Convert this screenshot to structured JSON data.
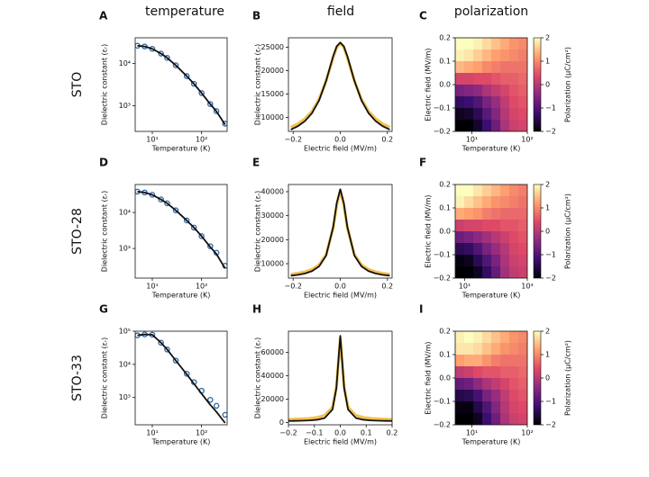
{
  "columns": [
    "temperature",
    "field",
    "polarization"
  ],
  "rows": [
    "STO",
    "STO-28",
    "STO-33"
  ],
  "chart_data": [
    {
      "panel": "A",
      "type": "line",
      "xlabel": "Temperature (K)",
      "ylabel": "Dielectric constant (εᵣ)",
      "xlog": true,
      "ylog": true,
      "xlim": [
        4.5,
        330
      ],
      "ylim": [
        250,
        40000
      ],
      "xticks": [
        {
          "value": 10,
          "label": "10¹"
        },
        {
          "value": 100,
          "label": "10²"
        }
      ],
      "yticks": [
        {
          "value": 1000,
          "label": "10³"
        },
        {
          "value": 10000,
          "label": "10⁴"
        }
      ],
      "x": [
        5,
        7,
        10,
        15,
        20,
        30,
        50,
        70,
        100,
        150,
        200,
        300
      ],
      "series": [
        {
          "color": "#3b6ea5",
          "marker": true,
          "values": [
            26000,
            25000,
            22000,
            17000,
            13500,
            9000,
            5000,
            3300,
            2000,
            1100,
            750,
            380
          ]
        },
        {
          "color": "#111111",
          "marker": false,
          "values": [
            26000,
            25000,
            22000,
            17000,
            13500,
            9000,
            5000,
            3300,
            2000,
            1100,
            740,
            360
          ]
        }
      ]
    },
    {
      "panel": "B",
      "type": "line",
      "xlabel": "Electric field (MV/m)",
      "ylabel": "Dielectric constant (εᵣ)",
      "xlim": [
        -0.22,
        0.22
      ],
      "ylim": [
        7000,
        27000
      ],
      "xticks": [
        {
          "value": -0.2,
          "label": "−0.2"
        },
        {
          "value": 0,
          "label": "0.0"
        },
        0.2
      ],
      "yticks": [
        10000,
        15000,
        20000,
        25000
      ],
      "x": [
        -0.21,
        -0.18,
        -0.15,
        -0.12,
        -0.09,
        -0.06,
        -0.03,
        -0.015,
        0,
        0.015,
        0.03,
        0.06,
        0.09,
        0.12,
        0.15,
        0.18,
        0.21
      ],
      "series": [
        {
          "color": "#f2c14e",
          "marker": false,
          "values": [
            7900,
            8600,
            9700,
            11300,
            13900,
            17800,
            22800,
            25000,
            25800,
            25000,
            22800,
            17800,
            13900,
            11300,
            9700,
            8600,
            7900
          ]
        },
        {
          "color": "#111111",
          "marker": false,
          "values": [
            7376,
            8107,
            9200,
            10899,
            13607,
            17805,
            23103,
            25192,
            26000,
            25192,
            23103,
            17805,
            13607,
            10899,
            9200,
            8107,
            7376
          ]
        }
      ]
    },
    {
      "panel": "C",
      "type": "heatmap",
      "xlabel": "Temperature (K)",
      "ylabel": "Electric field (MV/m)",
      "xlog": true,
      "xlim": [
        5,
        100
      ],
      "ylim": [
        -0.2,
        0.2
      ],
      "xticks": [
        {
          "value": 10,
          "label": "10¹"
        },
        {
          "value": 100,
          "label": "10²"
        }
      ],
      "yticks": [
        {
          "value": -0.2,
          "label": "−0.2"
        },
        {
          "value": -0.1,
          "label": "−0.1"
        },
        {
          "value": 0,
          "label": "0.0"
        },
        0.1,
        0.2
      ],
      "x": [
        6.0,
        8.8,
        12.8,
        18.5,
        27.0,
        39.2,
        57.0,
        83.0
      ],
      "y": [
        0.175,
        0.125,
        0.075,
        0.025,
        -0.025,
        -0.075,
        -0.125,
        -0.175
      ],
      "values": [
        [
          2,
          2,
          1.9,
          1.7,
          1.5,
          1.3,
          1.1,
          1.0
        ],
        [
          1.9,
          1.8,
          1.6,
          1.4,
          1.2,
          1.1,
          1.0,
          0.9
        ],
        [
          1.4,
          1.3,
          1.2,
          1.0,
          0.9,
          0.8,
          0.8,
          0.8
        ],
        [
          0.3,
          0.3,
          0.4,
          0.4,
          0.5,
          0.6,
          0.6,
          0.7
        ],
        [
          -0.6,
          -0.5,
          -0.4,
          -0.1,
          0.1,
          0.3,
          0.5,
          0.6
        ],
        [
          -1.3,
          -1.2,
          -1.0,
          -0.6,
          -0.3,
          0.1,
          0.4,
          0.5
        ],
        [
          -1.8,
          -1.7,
          -1.4,
          -0.9,
          -0.5,
          0,
          0.3,
          0.4
        ],
        [
          -2,
          -2,
          -1.7,
          -1.2,
          -0.7,
          -0.1,
          0.2,
          0.3
        ]
      ],
      "zlim": [
        -2,
        2
      ],
      "zticks": [
        {
          "value": -2,
          "label": "−2"
        },
        {
          "value": -1,
          "label": "−1"
        },
        0,
        1,
        2
      ],
      "zlabel": "Polarization (μC/cm²)",
      "colors": [
        "#000004",
        "#3b0f70",
        "#8c2981",
        "#de4968",
        "#fe9f6d",
        "#fcfdbf"
      ]
    },
    {
      "panel": "D",
      "type": "line",
      "xlabel": "Temperature (K)",
      "ylabel": "Dielectric constant (εᵣ)",
      "xlog": true,
      "ylog": true,
      "xlim": [
        4.5,
        330
      ],
      "ylim": [
        150,
        60000
      ],
      "xticks": [
        {
          "value": 10,
          "label": "10¹"
        },
        {
          "value": 100,
          "label": "10²"
        }
      ],
      "yticks": [
        {
          "value": 1000,
          "label": "10³"
        },
        {
          "value": 10000,
          "label": "10⁴"
        }
      ],
      "x": [
        5,
        7,
        10,
        15,
        20,
        30,
        50,
        70,
        100,
        150,
        200,
        300
      ],
      "series": [
        {
          "color": "#3b6ea5",
          "marker": true,
          "values": [
            38000,
            36000,
            31000,
            23000,
            18000,
            11500,
            6000,
            3800,
            2200,
            1150,
            760,
            330
          ]
        },
        {
          "color": "#111111",
          "marker": false,
          "values": [
            38000,
            36000,
            31000,
            23000,
            18000,
            11500,
            6000,
            3800,
            2200,
            1100,
            700,
            280
          ]
        }
      ]
    },
    {
      "panel": "E",
      "type": "line",
      "xlabel": "Electric field (MV/m)",
      "ylabel": "Dielectric constant (εᵣ)",
      "xlim": [
        -0.22,
        0.22
      ],
      "ylim": [
        4000,
        43000
      ],
      "xticks": [
        {
          "value": -0.2,
          "label": "−0.2"
        },
        {
          "value": 0,
          "label": "0.0"
        },
        0.2
      ],
      "yticks": [
        10000,
        20000,
        30000,
        40000
      ],
      "x": [
        -0.21,
        -0.18,
        -0.15,
        -0.12,
        -0.09,
        -0.06,
        -0.03,
        -0.015,
        0,
        0.015,
        0.03,
        0.06,
        0.09,
        0.12,
        0.15,
        0.18,
        0.21
      ],
      "series": [
        {
          "color": "#f2c14e",
          "marker": false,
          "values": [
            5600,
            6000,
            6600,
            7600,
            9500,
            13800,
            25000,
            34500,
            40500,
            34500,
            25000,
            13800,
            9500,
            7600,
            6600,
            6000,
            5600
          ]
        },
        {
          "color": "#111111",
          "marker": false,
          "values": [
            5000,
            5350,
            5910,
            6900,
            8862,
            13391,
            25326,
            35258,
            41000,
            35258,
            25326,
            13391,
            8862,
            6900,
            5910,
            5350,
            5000
          ]
        }
      ]
    },
    {
      "panel": "F",
      "type": "heatmap",
      "xlabel": "Temperature (K)",
      "ylabel": "Electric field (MV/m)",
      "xlog": true,
      "xlim": [
        5,
        1000
      ],
      "ylim": [
        -0.2,
        0.2
      ],
      "xticks": [
        {
          "value": 10,
          "label": "10¹"
        },
        {
          "value": 1000,
          "label": "10³"
        }
      ],
      "yticks": [
        {
          "value": -0.2,
          "label": "−0.2"
        },
        {
          "value": -0.1,
          "label": "−0.1"
        },
        {
          "value": 0,
          "label": "0.0"
        },
        0.1,
        0.2
      ],
      "x": [
        7.0,
        13.5,
        26.2,
        50.8,
        98.4,
        191,
        371,
        718
      ],
      "y": [
        0.175,
        0.125,
        0.075,
        0.025,
        -0.025,
        -0.075,
        -0.125,
        -0.175
      ],
      "values": [
        [
          2,
          2,
          1.8,
          1.6,
          1.4,
          1.2,
          1.0,
          0.9
        ],
        [
          1.9,
          1.7,
          1.5,
          1.3,
          1.1,
          1.0,
          0.9,
          0.8
        ],
        [
          1.3,
          1.2,
          1.1,
          0.9,
          0.8,
          0.7,
          0.7,
          0.7
        ],
        [
          0.2,
          0.3,
          0.3,
          0.4,
          0.4,
          0.5,
          0.5,
          0.6
        ],
        [
          -0.7,
          -0.6,
          -0.4,
          -0.2,
          0,
          0.2,
          0.4,
          0.5
        ],
        [
          -1.4,
          -1.3,
          -1.0,
          -0.6,
          -0.3,
          0,
          0.3,
          0.4
        ],
        [
          -1.9,
          -1.8,
          -1.4,
          -1.0,
          -0.6,
          -0.1,
          0.2,
          0.3
        ],
        [
          -2,
          -2,
          -1.8,
          -1.3,
          -0.8,
          -0.2,
          0.1,
          0.2
        ]
      ],
      "zlim": [
        -2,
        2
      ],
      "zticks": [
        {
          "value": -2,
          "label": "−2"
        },
        {
          "value": -1,
          "label": "−1"
        },
        0,
        1,
        2
      ],
      "zlabel": "Polarization (μC/cm²)",
      "colors": [
        "#000004",
        "#3b0f70",
        "#8c2981",
        "#de4968",
        "#fe9f6d",
        "#fcfdbf"
      ]
    },
    {
      "panel": "G",
      "type": "line",
      "xlabel": "Temperature (K)",
      "ylabel": "Dielectric constant (εᵣ)",
      "xlog": true,
      "ylog": true,
      "xlim": [
        4.5,
        330
      ],
      "ylim": [
        150,
        100000
      ],
      "xticks": [
        {
          "value": 10,
          "label": "10¹"
        },
        {
          "value": 100,
          "label": "10²"
        }
      ],
      "yticks": [
        {
          "value": 1000,
          "label": "10³"
        },
        {
          "value": 10000,
          "label": "10⁴"
        },
        {
          "value": 100000,
          "label": "10⁵"
        }
      ],
      "x": [
        5,
        7,
        10,
        15,
        20,
        30,
        50,
        70,
        100,
        150,
        200,
        300
      ],
      "series": [
        {
          "color": "#3b6ea5",
          "marker": true,
          "values": [
            75000,
            80000,
            78000,
            45000,
            28000,
            13000,
            5200,
            2900,
            1600,
            850,
            560,
            300
          ]
        },
        {
          "color": "#111111",
          "marker": false,
          "values": [
            75000,
            80000,
            78000,
            45000,
            28000,
            13000,
            5000,
            2600,
            1300,
            600,
            370,
            170
          ]
        }
      ]
    },
    {
      "panel": "H",
      "type": "line",
      "xlabel": "Electric field (MV/m)",
      "ylabel": "Dielectric constant (εᵣ)",
      "xlim": [
        -0.2,
        0.2
      ],
      "ylim": [
        -2000,
        78000
      ],
      "xticks": [
        {
          "value": -0.2,
          "label": "−0.2"
        },
        {
          "value": -0.1,
          "label": "−0.1"
        },
        {
          "value": 0,
          "label": "0.0"
        },
        0.1,
        0.2
      ],
      "yticks": [
        0,
        20000,
        40000,
        60000
      ],
      "x": [
        -0.2,
        -0.18,
        -0.15,
        -0.12,
        -0.09,
        -0.06,
        -0.03,
        -0.015,
        0,
        0.015,
        0.03,
        0.06,
        0.09,
        0.12,
        0.15,
        0.18,
        0.2
      ],
      "series": [
        {
          "color": "#f2c14e",
          "marker": false,
          "values": [
            2500,
            2700,
            3000,
            3400,
            4200,
            6000,
            13000,
            30000,
            72000,
            30000,
            13000,
            6000,
            4200,
            3400,
            3000,
            2700,
            2500
          ]
        },
        {
          "color": "#111111",
          "marker": false,
          "values": [
            1262,
            1323,
            1466,
            1723,
            2280,
            3808,
            11069,
            29488,
            74000,
            29488,
            11069,
            3808,
            2280,
            1723,
            1466,
            1323,
            1262
          ]
        }
      ]
    },
    {
      "panel": "I",
      "type": "heatmap",
      "xlabel": "Temperature (K)",
      "ylabel": "Electric field (MV/m)",
      "xlog": true,
      "xlim": [
        5,
        100
      ],
      "ylim": [
        -0.2,
        0.2
      ],
      "xticks": [
        {
          "value": 10,
          "label": "10¹"
        },
        {
          "value": 100,
          "label": "10²"
        }
      ],
      "yticks": [
        {
          "value": -0.2,
          "label": "−0.2"
        },
        {
          "value": -0.1,
          "label": "−0.1"
        },
        {
          "value": 0,
          "label": "0.0"
        },
        0.1,
        0.2
      ],
      "x": [
        6.0,
        8.8,
        12.8,
        18.5,
        27.0,
        39.2,
        57.0,
        83.0
      ],
      "y": [
        0.175,
        0.125,
        0.075,
        0.025,
        -0.025,
        -0.075,
        -0.125,
        -0.175
      ],
      "values": [
        [
          1.9,
          2,
          1.9,
          1.7,
          1.5,
          1.3,
          1.1,
          1.0
        ],
        [
          1.8,
          1.8,
          1.7,
          1.5,
          1.3,
          1.1,
          1.0,
          0.9
        ],
        [
          1.2,
          1.3,
          1.3,
          1.1,
          0.9,
          0.8,
          0.8,
          0.8
        ],
        [
          0.1,
          0.2,
          0.4,
          0.5,
          0.5,
          0.6,
          0.6,
          0.7
        ],
        [
          -0.8,
          -0.7,
          -0.4,
          -0.1,
          0.1,
          0.3,
          0.5,
          0.6
        ],
        [
          -1.5,
          -1.4,
          -1.1,
          -0.6,
          -0.3,
          0.1,
          0.4,
          0.5
        ],
        [
          -1.9,
          -1.9,
          -1.5,
          -1.0,
          -0.5,
          0,
          0.3,
          0.4
        ],
        [
          -2,
          -2,
          -1.8,
          -1.2,
          -0.7,
          -0.1,
          0.2,
          0.3
        ]
      ],
      "zlim": [
        -2,
        2
      ],
      "zticks": [
        {
          "value": -2,
          "label": "−2"
        },
        {
          "value": -1,
          "label": "−1"
        },
        0,
        1,
        2
      ],
      "zlabel": "Polarization (μC/cm²)",
      "colors": [
        "#000004",
        "#3b0f70",
        "#8c2981",
        "#de4968",
        "#fe9f6d",
        "#fcfdbf"
      ]
    }
  ]
}
